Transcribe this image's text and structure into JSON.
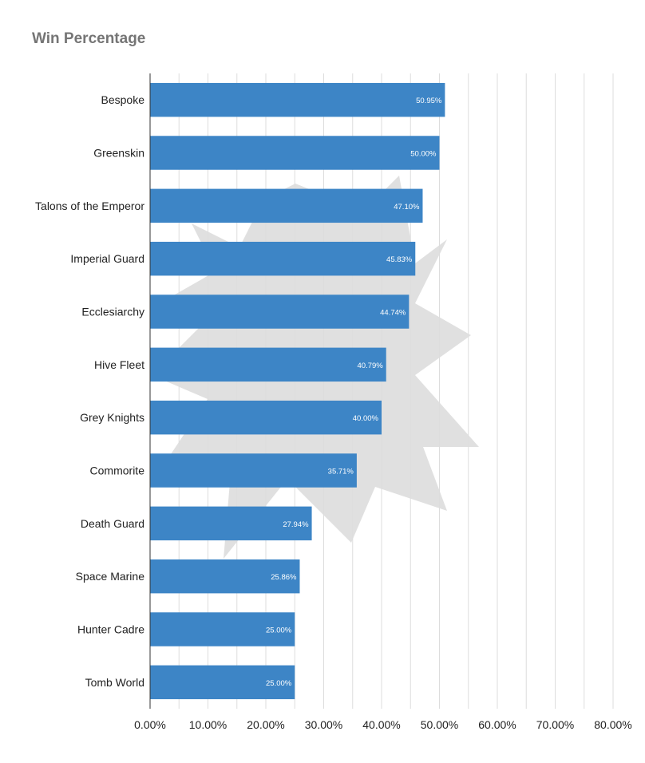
{
  "chart_data": {
    "type": "bar",
    "orientation": "horizontal",
    "title": "Win Percentage",
    "categories": [
      "Bespoke",
      "Greenskin",
      "Talons of the Emperor",
      "Imperial Guard",
      "Ecclesiarchy",
      "Hive Fleet",
      "Grey Knights",
      "Commorite",
      "Death Guard",
      "Space Marine",
      "Hunter Cadre",
      "Tomb World"
    ],
    "values": [
      50.95,
      50.0,
      47.1,
      45.83,
      44.74,
      40.79,
      40.0,
      35.71,
      27.94,
      25.86,
      25.0,
      25.0
    ],
    "data_labels": [
      "50.95%",
      "50.00%",
      "47.10%",
      "45.83%",
      "44.74%",
      "40.79%",
      "40.00%",
      "35.71%",
      "27.94%",
      "25.86%",
      "25.00%",
      "25.00%"
    ],
    "x_ticks": [
      "0.00%",
      "10.00%",
      "20.00%",
      "30.00%",
      "40.00%",
      "50.00%",
      "60.00%",
      "70.00%",
      "80.00%"
    ],
    "xlim": [
      0,
      80
    ],
    "grid": true,
    "legend": "none",
    "bar_color": "#3d85c6",
    "grid_color": "#dddddd",
    "axis_color": "#333333"
  }
}
